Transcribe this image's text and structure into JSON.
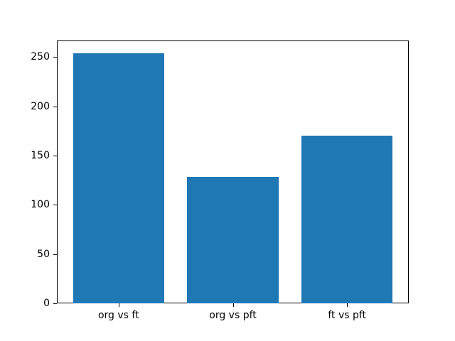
{
  "chart_data": {
    "type": "bar",
    "categories": [
      "org vs ft",
      "org vs pft",
      "ft vs pft"
    ],
    "values": [
      254,
      128,
      170
    ],
    "title": "",
    "xlabel": "",
    "ylabel": "",
    "ylim": [
      0,
      266.7
    ],
    "yticks": [
      0,
      50,
      100,
      150,
      200,
      250
    ],
    "bar_color": "#1f77b4",
    "axis_color": "#000000",
    "background_color": "#ffffff",
    "grid": false,
    "legend": null
  }
}
